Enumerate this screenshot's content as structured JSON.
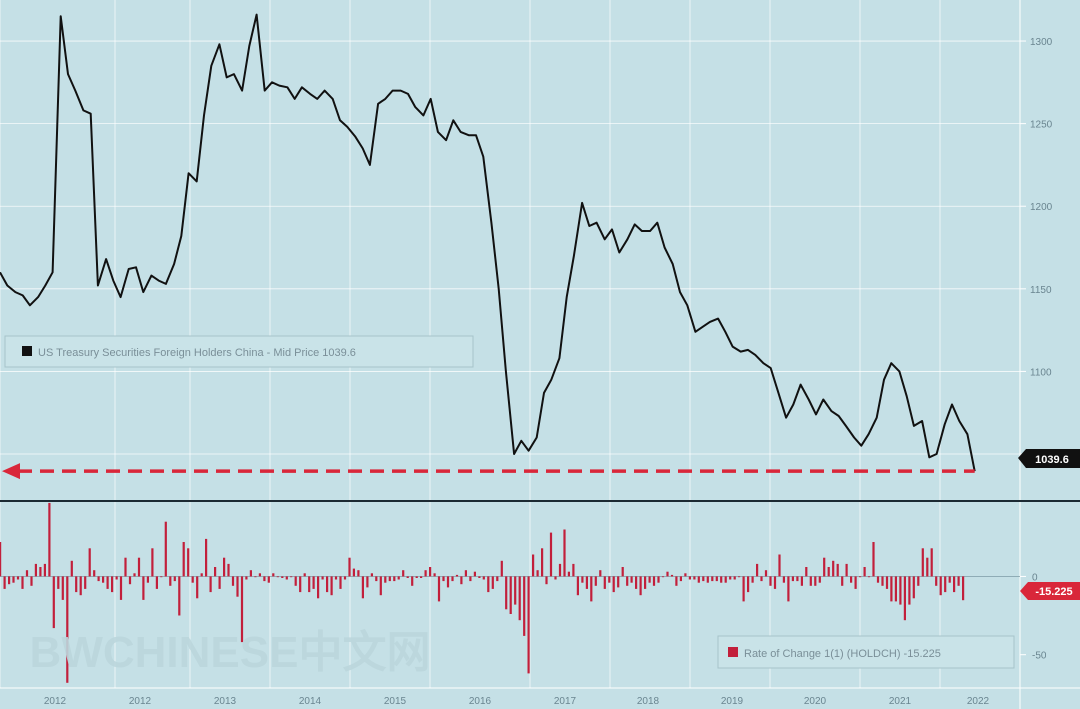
{
  "chart_data": [
    {
      "type": "line",
      "name": "upper-price-panel",
      "legend": "US Treasury Securities Foreign Holders China - Mid Price 1039.6",
      "last_value_label": "1039.6",
      "y_ticks": [
        "1300",
        "1250",
        "1200",
        "1150",
        "1100",
        "1050"
      ],
      "ylim": [
        1027,
        1320
      ],
      "reference_line": {
        "value": 1039.6,
        "style": "dashed",
        "color": "#d9273a",
        "arrow": "left"
      },
      "x": [
        2011.0,
        2011.08,
        2011.17,
        2011.25,
        2011.33,
        2011.42,
        2011.5,
        2011.58,
        2011.67,
        2011.75,
        2011.83,
        2011.92,
        2012.0,
        2012.08,
        2012.17,
        2012.25,
        2012.33,
        2012.42,
        2012.5,
        2012.58,
        2012.67,
        2012.75,
        2012.83,
        2012.92,
        2013.0,
        2013.08,
        2013.17,
        2013.25,
        2013.33,
        2013.42,
        2013.5,
        2013.58,
        2013.67,
        2013.75,
        2013.83,
        2013.92,
        2014.0,
        2014.08,
        2014.17,
        2014.25,
        2014.33,
        2014.42,
        2014.5,
        2014.58,
        2014.67,
        2014.75,
        2014.83,
        2014.92,
        2015.0,
        2015.08,
        2015.17,
        2015.25,
        2015.33,
        2015.42,
        2015.5,
        2015.58,
        2015.67,
        2015.75,
        2015.83,
        2015.92,
        2016.0,
        2016.08,
        2016.17,
        2016.25,
        2016.33,
        2016.42,
        2016.5,
        2016.58,
        2016.67,
        2016.75,
        2016.83,
        2016.92,
        2017.0,
        2017.08,
        2017.17,
        2017.25,
        2017.33,
        2017.42,
        2017.5,
        2017.58,
        2017.67,
        2017.75,
        2017.83,
        2017.92,
        2018.0,
        2018.08,
        2018.17,
        2018.25,
        2018.33,
        2018.42,
        2018.5,
        2018.58,
        2018.67,
        2018.75,
        2018.83,
        2018.92,
        2019.0,
        2019.08,
        2019.17,
        2019.25,
        2019.33,
        2019.42,
        2019.5,
        2019.58,
        2019.67,
        2019.75,
        2019.83,
        2019.92,
        2020.0,
        2020.08,
        2020.17,
        2020.25,
        2020.33,
        2020.42,
        2020.5,
        2020.58,
        2020.67,
        2020.75,
        2020.83,
        2020.92,
        2021.0,
        2021.08,
        2021.17,
        2021.25,
        2021.33,
        2021.42,
        2021.5,
        2021.58,
        2021.67,
        2021.75
      ],
      "values": [
        1160,
        1152,
        1148,
        1146,
        1140,
        1145,
        1152,
        1160,
        1315,
        1280,
        1270,
        1258,
        1256,
        1152,
        1168,
        1155,
        1145,
        1162,
        1163,
        1148,
        1158,
        1155,
        1153,
        1165,
        1182,
        1220,
        1215,
        1255,
        1285,
        1298,
        1278,
        1280,
        1270,
        1297,
        1316,
        1270,
        1275,
        1273,
        1272,
        1265,
        1272,
        1268,
        1265,
        1270,
        1265,
        1252,
        1248,
        1242,
        1235,
        1225,
        1262,
        1265,
        1270,
        1270,
        1268,
        1260,
        1255,
        1265,
        1245,
        1240,
        1252,
        1245,
        1243,
        1243,
        1230,
        1190,
        1150,
        1100,
        1050,
        1058,
        1052,
        1060,
        1087,
        1095,
        1108,
        1145,
        1170,
        1202,
        1188,
        1190,
        1180,
        1186,
        1172,
        1180,
        1189,
        1185,
        1185,
        1190,
        1175,
        1165,
        1148,
        1140,
        1124,
        1127,
        1130,
        1132,
        1124,
        1115,
        1112,
        1113,
        1110,
        1105,
        1102,
        1088,
        1072,
        1080,
        1092,
        1083,
        1074,
        1083,
        1076,
        1073,
        1067,
        1060,
        1055,
        1062,
        1072,
        1095,
        1105,
        1100,
        1085,
        1067,
        1070,
        1048,
        1050,
        1068,
        1080,
        1070,
        1062,
        1039.6
      ]
    },
    {
      "type": "bar",
      "name": "lower-rate-of-change-panel",
      "legend": "Rate of Change 1(1) (HOLDCH) -15.225",
      "last_value_label": "-15.225",
      "y_ticks": [
        "0",
        "-50"
      ],
      "ylim": [
        -70,
        45
      ],
      "x_ticks": [
        "2012",
        "2012",
        "2013",
        "2014",
        "2015",
        "2016",
        "2017",
        "2018",
        "2019",
        "2020",
        "2021",
        "2022"
      ],
      "values": [
        22,
        -8,
        -5,
        -4,
        -2,
        -8,
        4,
        -6,
        8,
        6,
        8,
        47,
        -33,
        -8,
        -15,
        -68,
        10,
        -10,
        -12,
        -8,
        18,
        4,
        -3,
        -4,
        -8,
        -10,
        -2,
        -15,
        12,
        -5,
        2,
        12,
        -15,
        -4,
        18,
        -8,
        0,
        35,
        -6,
        -3,
        -25,
        22,
        18,
        -4,
        -14,
        2,
        24,
        -10,
        6,
        -8,
        12,
        8,
        -6,
        -13,
        -42,
        -2,
        4,
        0,
        2,
        -3,
        -4,
        2,
        0,
        -1,
        -2,
        0,
        -6,
        -10,
        2,
        -10,
        -8,
        -14,
        -2,
        -10,
        -12,
        -2,
        -8,
        -2,
        12,
        5,
        4,
        -14,
        -7,
        2,
        -3,
        -12,
        -4,
        -3,
        -3,
        -2,
        4,
        -1,
        -6,
        -1,
        -1,
        4,
        6,
        2,
        -16,
        -3,
        -7,
        -3,
        1,
        -5,
        4,
        -3,
        3,
        -1,
        -2,
        -10,
        -8,
        -3,
        10,
        -21,
        -24,
        -18,
        -28,
        -38,
        -62,
        14,
        4,
        18,
        -5,
        28,
        -2,
        8,
        30,
        3,
        8,
        -12,
        -4,
        -8,
        -16,
        -6,
        4,
        -8,
        -4,
        -10,
        -7,
        6,
        -6,
        -4,
        -8,
        -12,
        -8,
        -4,
        -6,
        -4,
        0,
        3,
        1,
        -6,
        -3,
        2,
        -2,
        -2,
        -4,
        -3,
        -4,
        -3,
        -3,
        -4,
        -4,
        -2,
        -2,
        0,
        -16,
        -10,
        -4,
        8,
        -3,
        4,
        -6,
        -8,
        14,
        -4,
        -16,
        -3,
        -3,
        -6,
        6,
        -6,
        -6,
        -4,
        12,
        6,
        10,
        8,
        -6,
        8,
        -4,
        -8,
        0,
        6,
        0,
        22,
        -4,
        -6,
        -8,
        -16,
        -16,
        -18,
        -28,
        -18,
        -14,
        -6,
        18,
        12,
        18,
        -6,
        -12,
        -10,
        -4,
        -10,
        -6,
        -15.225
      ]
    }
  ],
  "watermark": "BWCHINESE中文网"
}
